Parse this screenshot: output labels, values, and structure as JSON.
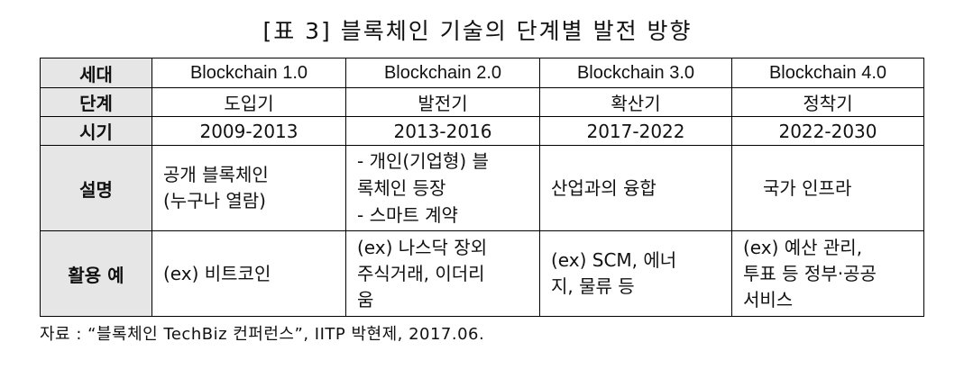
{
  "title": "[표 3] 블록체인 기술의 단계별 발전 방향",
  "table": {
    "header_label": "세대",
    "columns": [
      "Blockchain 1.0",
      "Blockchain 2.0",
      "Blockchain 3.0",
      "Blockchain 4.0"
    ],
    "rows": [
      {
        "label": "단계",
        "cells": [
          "도입기",
          "발전기",
          "확산기",
          "정착기"
        ]
      },
      {
        "label": "시기",
        "cells": [
          "2009-2013",
          "2013-2016",
          "2017-2022",
          "2022-2030"
        ]
      },
      {
        "label": "설명",
        "cells": [
          {
            "lines": [
              "공개 블록체인",
              "(누구나 열람)"
            ]
          },
          {
            "lines": [
              "- 개인(기업형) 블",
              "록체인 등장",
              "- 스마트 계약"
            ]
          },
          {
            "lines": [
              "산업과의 융합"
            ]
          },
          {
            "lines": [
              "국가 인프라"
            ]
          }
        ]
      },
      {
        "label": "활용 예",
        "cells": [
          {
            "lines": [
              "(ex) 비트코인"
            ]
          },
          {
            "lines": [
              "(ex) 나스닥 장외",
              "주식거래, 이더리",
              "움"
            ]
          },
          {
            "lines": [
              "(ex) SCM, 에너",
              "지, 물류 등"
            ]
          },
          {
            "lines": [
              "(ex) 예산 관리,",
              "투표 등 정부·공공",
              "서비스"
            ]
          }
        ]
      }
    ]
  },
  "footnote": "자료 : “블록체인 TechBiz 컨퍼런스”, IITP 박현제, 2017.06."
}
